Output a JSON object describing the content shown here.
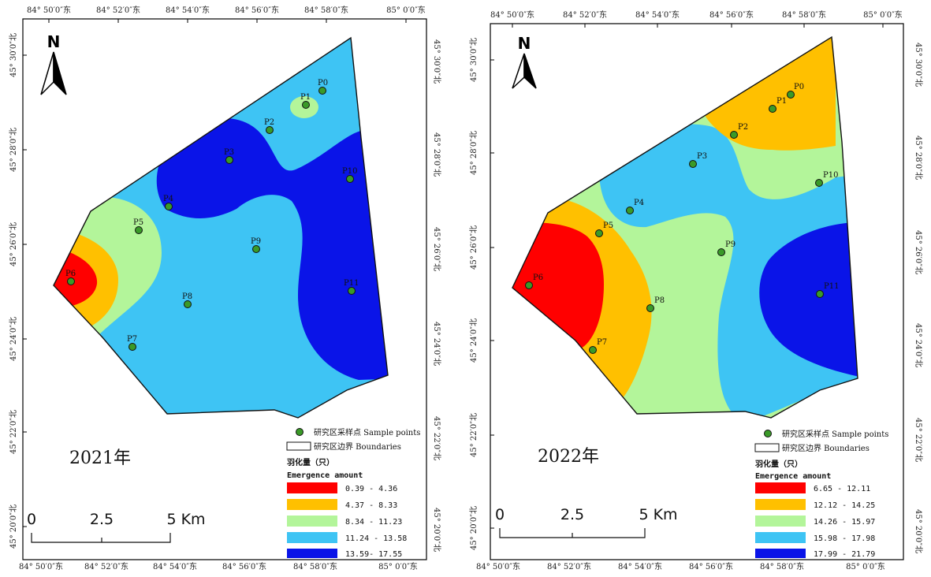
{
  "colors": {
    "c1": "#ff0000",
    "c2": "#ffc000",
    "c3": "#b3f59a",
    "c4": "#3ec4f4",
    "c5": "#0a14e8",
    "point": "#3a9a28"
  },
  "panels": [
    {
      "year": "2021年",
      "top_ticks": [
        "84° 50′0″东",
        "84° 52′0″东",
        "84° 54′0″东",
        "84° 56′0″东",
        "84° 58′0″东",
        "85° 0′0″东"
      ],
      "bottom_ticks": [
        "84° 50′0″东",
        "84° 52′0″东",
        "84° 54′0″东",
        "84° 56′0″东",
        "84° 58′0″东",
        "85° 0′0″东"
      ],
      "left_ticks": [
        "45° 30′0″北",
        "45° 28′0″北",
        "45° 26′0″北",
        "45° 24′0″北",
        "45° 22′0″北",
        "45° 20′0″北"
      ],
      "right_ticks": [
        "45° 30′0″北",
        "45° 28′0″北",
        "45° 26′0″北",
        "45° 24′0″北",
        "45° 22′0″北",
        "45° 20′0″北"
      ],
      "north": "N",
      "points": [
        "P0",
        "P1",
        "P2",
        "P3",
        "P4",
        "P5",
        "P6",
        "P7",
        "P8",
        "P9",
        "P10",
        "P11"
      ],
      "legend": {
        "sample_points": "研究区采样点 Sample points",
        "boundaries": "研究区边界  Boundaries",
        "title_cn": "羽化量（只）",
        "title_en": "Emergence amount",
        "classes": [
          "0.39 - 4.36",
          "4.37 - 8.33",
          "8.34 - 11.23",
          "11.24 - 13.58",
          "13.59- 17.55"
        ]
      },
      "scalebar": [
        "0",
        "2.5",
        "5 Km"
      ]
    },
    {
      "year": "2022年",
      "top_ticks": [
        "84° 50′0″东",
        "84° 52′0″东",
        "84° 54′0″东",
        "84° 56′0″东",
        "84° 58′0″东",
        "85° 0′0″东"
      ],
      "bottom_ticks": [
        "84° 50′0″东",
        "84° 52′0″东",
        "84° 54′0″东",
        "84° 56′0″东",
        "84° 58′0″东",
        "85° 0′0″东"
      ],
      "left_ticks": [
        "45° 30′0″北",
        "45° 28′0″北",
        "45° 26′0″北",
        "45° 24′0″北",
        "45° 22′0″北",
        "45° 20′0″北"
      ],
      "right_ticks": [
        "45° 30′0″北",
        "45° 28′0″北",
        "45° 26′0″北",
        "45° 24′0″北",
        "45° 22′0″北",
        "45° 20′0″北"
      ],
      "north": "N",
      "points": [
        "P0",
        "P1",
        "P2",
        "P3",
        "P4",
        "P5",
        "P6",
        "P7",
        "P8",
        "P9",
        "P10",
        "P11"
      ],
      "legend": {
        "sample_points": "研究区采样点 Sample points",
        "boundaries": "研究区边界  Boundaries",
        "title_cn": "羽化量（只）",
        "title_en": "Emergence amount",
        "classes": [
          "6.65 - 12.11",
          "12.12 - 14.25",
          "14.26 - 15.97",
          "15.98 - 17.98",
          "17.99 - 21.79"
        ]
      },
      "scalebar": [
        "0",
        "2.5",
        "5 Km"
      ]
    }
  ]
}
